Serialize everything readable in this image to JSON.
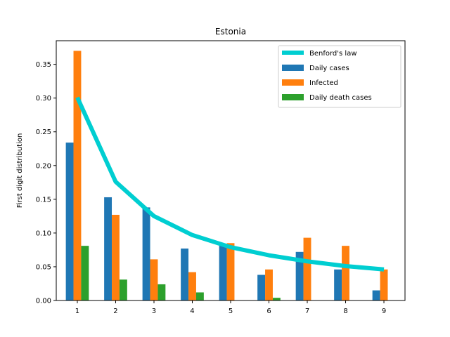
{
  "chart_data": {
    "type": "bar",
    "title": "Estonia",
    "xlabel": "",
    "ylabel": "First digit distribution",
    "categories": [
      "1",
      "2",
      "3",
      "4",
      "5",
      "6",
      "7",
      "8",
      "9"
    ],
    "x": [
      1,
      2,
      3,
      4,
      5,
      6,
      7,
      8,
      9
    ],
    "ylim": [
      0,
      0.385
    ],
    "yticks": [
      "0.00",
      "0.05",
      "0.10",
      "0.15",
      "0.20",
      "0.25",
      "0.30",
      "0.35"
    ],
    "ytick_values": [
      0,
      0.05,
      0.1,
      0.15,
      0.2,
      0.25,
      0.3,
      0.35
    ],
    "grid": false,
    "legend": "top-right",
    "series": [
      {
        "name": "Daily cases",
        "kind": "bar",
        "color": "#1f77b4",
        "values": [
          0.234,
          0.153,
          0.138,
          0.077,
          0.083,
          0.038,
          0.072,
          0.046,
          0.015
        ]
      },
      {
        "name": "Infected",
        "kind": "bar",
        "color": "#ff7f0e",
        "values": [
          0.37,
          0.127,
          0.061,
          0.042,
          0.085,
          0.046,
          0.093,
          0.081,
          0.046
        ]
      },
      {
        "name": "Daily death cases",
        "kind": "bar",
        "color": "#2ca02c",
        "values": [
          0.081,
          0.031,
          0.024,
          0.012,
          0.0,
          0.004,
          0.0,
          0.0,
          0.0
        ]
      },
      {
        "name": "Benford's law",
        "kind": "line",
        "color": "#00ced1",
        "values": [
          0.301,
          0.176,
          0.125,
          0.097,
          0.079,
          0.067,
          0.058,
          0.051,
          0.046
        ]
      }
    ],
    "legend_order": [
      "Benford's law",
      "Daily cases",
      "Infected",
      "Daily death cases"
    ]
  }
}
